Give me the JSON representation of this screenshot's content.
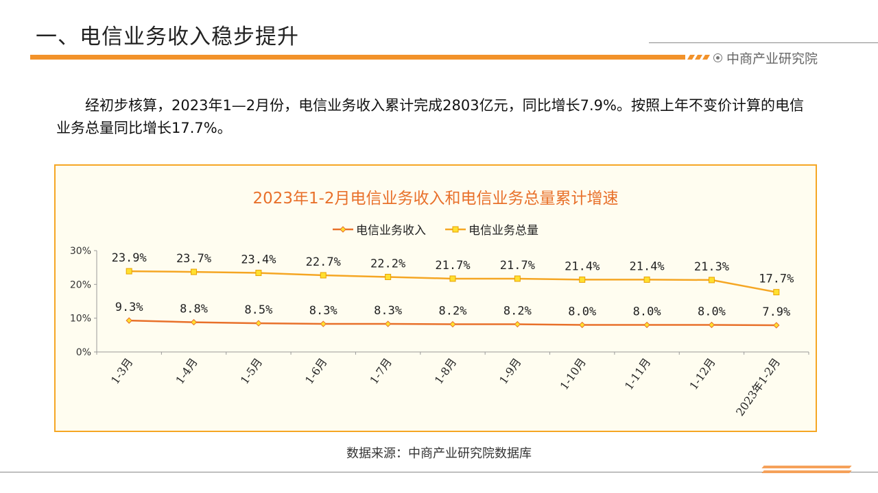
{
  "header": {
    "title": "一、电信业务收入稳步提升",
    "logo_text": "中商产业研究院"
  },
  "body": {
    "paragraph": "经初步核算，2023年1—2月份，电信业务收入累计完成2803亿元，同比增长7.9%。按照上年不变价计算的电信业务总量同比增长17.7%。"
  },
  "colors": {
    "accent": "#f2922a",
    "series_revenue": "#e8702a",
    "series_volume": "#f5a623",
    "marker_fill": "#ffe030"
  },
  "chart_data": {
    "type": "line",
    "title": "2023年1-2月电信业务收入和电信业务总量累计增速",
    "categories": [
      "1-3月",
      "1-4月",
      "1-5月",
      "1-6月",
      "1-7月",
      "1-8月",
      "1-9月",
      "1-10月",
      "1-11月",
      "1-12月",
      "2023年1-2月"
    ],
    "series": [
      {
        "name": "电信业务收入",
        "values": [
          9.3,
          8.8,
          8.5,
          8.3,
          8.3,
          8.2,
          8.2,
          8.0,
          8.0,
          8.0,
          7.9
        ],
        "labels": [
          "9.3%",
          "8.8%",
          "8.5%",
          "8.3%",
          "8.3%",
          "8.2%",
          "8.2%",
          "8.0%",
          "8.0%",
          "8.0%",
          "7.9%"
        ]
      },
      {
        "name": "电信业务总量",
        "values": [
          23.9,
          23.7,
          23.4,
          22.7,
          22.2,
          21.7,
          21.7,
          21.4,
          21.4,
          21.3,
          17.7
        ],
        "labels": [
          "23.9%",
          "23.7%",
          "23.4%",
          "22.7%",
          "22.2%",
          "21.7%",
          "21.7%",
          "21.4%",
          "21.4%",
          "21.3%",
          "17.7%"
        ]
      }
    ],
    "yticks": [
      "0%",
      "10%",
      "20%",
      "30%"
    ],
    "ylim": [
      0,
      30
    ],
    "legend": "top",
    "grid": false
  },
  "footer": {
    "source": "数据来源：中商产业研究院数据库"
  }
}
